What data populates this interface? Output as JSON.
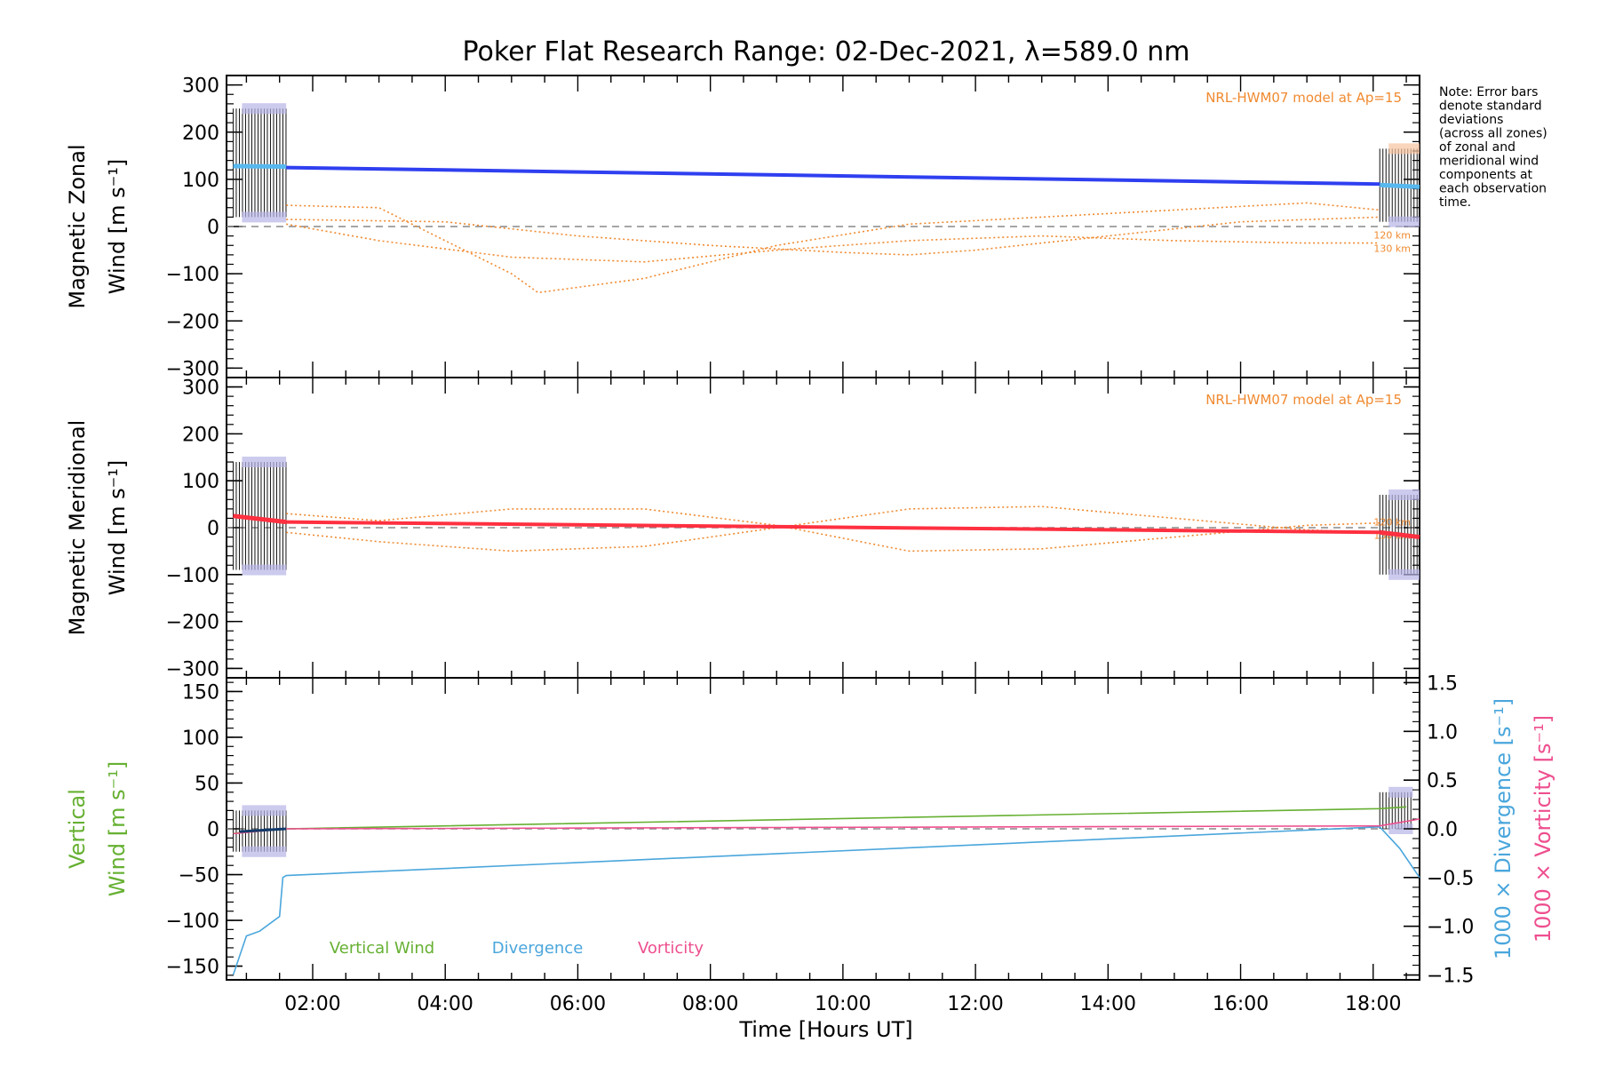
{
  "title": "Poker Flat Research Range: 02-Dec-2021, λ=589.0 nm",
  "note_lines": [
    "Note: Error bars",
    "denote standard",
    "deviations",
    "(across all zones)",
    "of zonal and",
    "meridional wind",
    "components at",
    "each observation",
    "time."
  ],
  "xlabel": "Time [Hours UT]",
  "x_ticks": [
    "02:00",
    "04:00",
    "06:00",
    "08:00",
    "10:00",
    "12:00",
    "14:00",
    "16:00",
    "18:00"
  ],
  "colors": {
    "zonal": "#2f3ff0",
    "meridional": "#ff3040",
    "model": "#f08a30",
    "vertical": "#66b032",
    "divergence": "#4aa6dc",
    "vorticity": "#ee4f8f",
    "errorbar": "#111111",
    "zone_spread": "#b7b3e6",
    "zone_spread_orange": "#f6c3a0"
  },
  "chart_data": [
    {
      "type": "line",
      "name": "zonal",
      "ylabel": [
        "Magnetic Zonal",
        "Wind [m s⁻¹]"
      ],
      "ylim": [
        -320,
        320
      ],
      "y_ticks": [
        300,
        200,
        100,
        0,
        -100,
        -200,
        -300
      ],
      "model_label": "NRL-HWM07 model at Ap=15",
      "model_alt_labels": [
        "120 km",
        "130 km"
      ],
      "x_range_hours": [
        0.8,
        18.7
      ],
      "observed": {
        "x": [
          0.8,
          1.6,
          18.1,
          18.7
        ],
        "y": [
          128,
          127,
          88,
          84
        ]
      },
      "fit_line": {
        "x": [
          1.6,
          18.1
        ],
        "y": [
          125,
          90
        ]
      },
      "errorbar_range": {
        "x": [
          0.8,
          1.6
        ],
        "upper": 250,
        "lower": 20
      },
      "errorbar_range_end": {
        "x": [
          18.1,
          18.7
        ],
        "upper": 165,
        "lower": 10
      },
      "model_curves": [
        {
          "x": [
            1.6,
            3,
            5,
            5.4,
            7,
            9,
            11,
            13,
            15,
            17,
            18.1
          ],
          "y": [
            45,
            40,
            -100,
            -140,
            -110,
            -40,
            5,
            20,
            35,
            50,
            35
          ]
        },
        {
          "x": [
            1.6,
            3,
            5,
            7,
            9,
            11,
            13,
            15,
            17,
            18.1
          ],
          "y": [
            5,
            -30,
            -65,
            -75,
            -50,
            -30,
            -20,
            -30,
            -35,
            -35
          ]
        },
        {
          "x": [
            1.6,
            4,
            6,
            8,
            10,
            11,
            12,
            14,
            16,
            18.1
          ],
          "y": [
            15,
            10,
            -20,
            -40,
            -55,
            -60,
            -50,
            -20,
            10,
            20
          ]
        }
      ]
    },
    {
      "type": "line",
      "name": "meridional",
      "ylabel": [
        "Magnetic Meridional",
        "Wind [m s⁻¹]"
      ],
      "ylim": [
        -320,
        320
      ],
      "y_ticks": [
        300,
        200,
        100,
        0,
        -100,
        -200,
        -300
      ],
      "model_label": "NRL-HWM07 model at Ap=15",
      "model_alt_labels": [
        "120 km",
        "130 km"
      ],
      "x_range_hours": [
        0.8,
        18.7
      ],
      "observed": {
        "x": [
          0.8,
          1.6,
          18.1,
          18.7
        ],
        "y": [
          25,
          12,
          -10,
          -20
        ]
      },
      "fit_line": {
        "x": [
          1.6,
          18.1
        ],
        "y": [
          12,
          -10
        ]
      },
      "errorbar_range": {
        "x": [
          0.8,
          1.6
        ],
        "upper": 140,
        "lower": -90
      },
      "errorbar_range_end": {
        "x": [
          18.1,
          18.7
        ],
        "upper": 70,
        "lower": -100
      },
      "model_curves": [
        {
          "x": [
            1.6,
            3,
            5,
            7,
            9,
            11,
            13,
            15,
            17,
            18.1
          ],
          "y": [
            30,
            15,
            40,
            40,
            5,
            -50,
            -45,
            -20,
            5,
            10
          ]
        },
        {
          "x": [
            1.6,
            3,
            5,
            7,
            9,
            11,
            13,
            15,
            17,
            18.1
          ],
          "y": [
            -10,
            -30,
            -50,
            -40,
            0,
            40,
            45,
            20,
            -5,
            -10
          ]
        }
      ]
    },
    {
      "type": "line",
      "name": "vertical",
      "ylabel": [
        "Vertical",
        "Wind [m s⁻¹]"
      ],
      "right_ylabel_divergence": "1000 × Divergence [s⁻¹]",
      "right_ylabel_vorticity": "1000 × Vorticity [s⁻¹]",
      "ylim": [
        -165,
        165
      ],
      "y_ticks": [
        150,
        100,
        50,
        0,
        -50,
        -100,
        -150
      ],
      "right_ylim": [
        -1.55,
        1.55
      ],
      "right_ticks": [
        "1.5",
        "1.0",
        "0.5",
        "0.0",
        "-0.5",
        "-1.0",
        "-1.5"
      ],
      "right_tick_values": [
        1.5,
        1.0,
        0.5,
        0.0,
        -0.5,
        -1.0,
        -1.5
      ],
      "legend": [
        "Vertical Wind",
        "Divergence",
        "Vorticity"
      ],
      "x_range_hours": [
        0.8,
        18.7
      ],
      "series": [
        {
          "name": "Vertical Wind",
          "x": [
            0.8,
            1.6,
            18.1,
            18.5
          ],
          "y": [
            -5,
            0,
            22,
            24
          ]
        },
        {
          "name": "Divergence",
          "x": [
            0.8,
            1.0,
            1.2,
            1.5,
            1.55,
            1.6,
            18.1,
            18.4,
            18.7
          ],
          "y_right": [
            -1.5,
            -1.1,
            -1.05,
            -0.9,
            -0.5,
            -0.48,
            0.02,
            -0.2,
            -0.5
          ]
        },
        {
          "name": "Vorticity",
          "x": [
            0.8,
            1.6,
            18.1,
            18.7
          ],
          "y_right": [
            -0.05,
            0.0,
            0.03,
            0.1
          ]
        }
      ],
      "errorbar_range": {
        "x": [
          0.8,
          1.6
        ],
        "upper": 20,
        "lower": -25
      },
      "errorbar_range_end": {
        "x": [
          18.1,
          18.6
        ],
        "upper": 40,
        "lower": 0
      }
    }
  ]
}
